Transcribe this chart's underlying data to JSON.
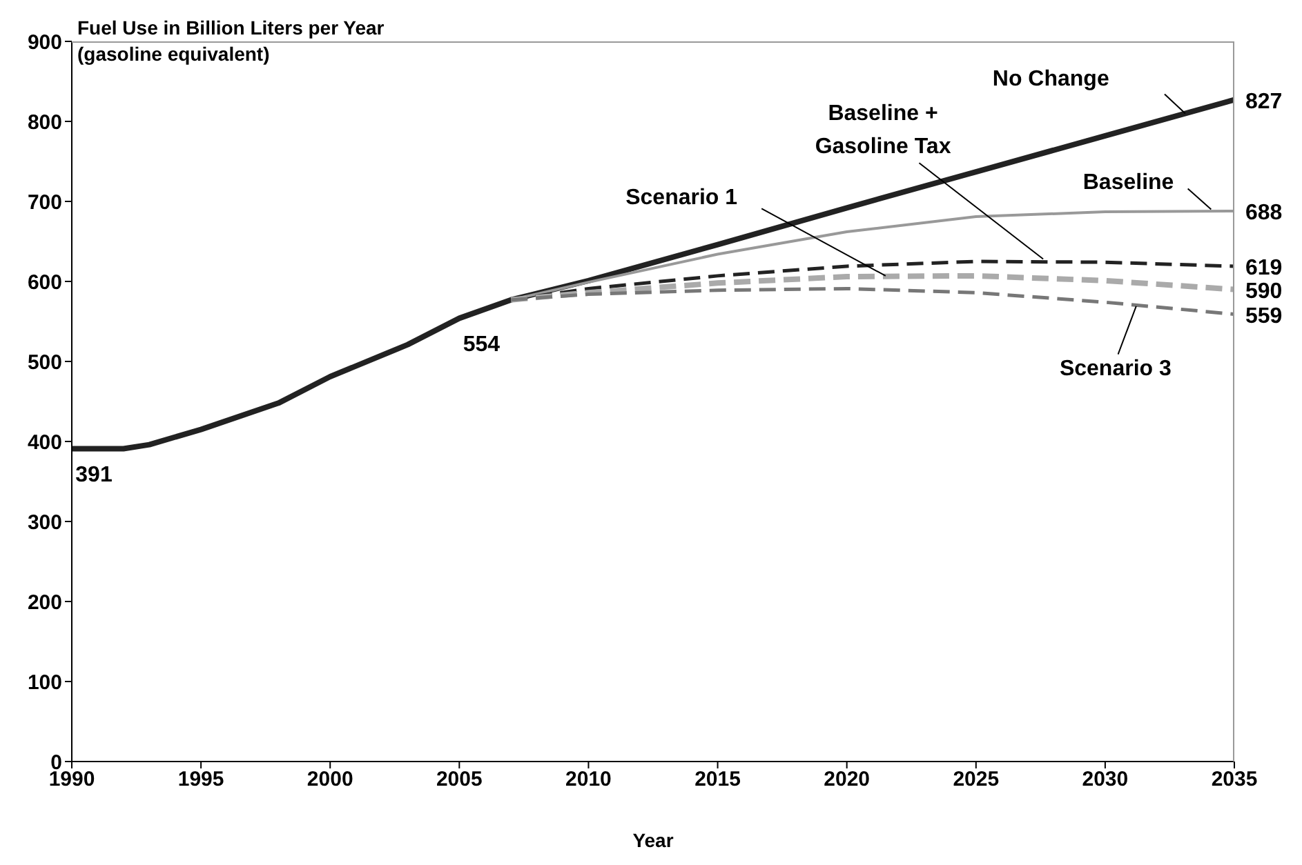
{
  "chart_data": {
    "type": "line",
    "ylabel": "Fuel Use in Billion Liters per Year (gasoline equivalent)",
    "xlabel": "Year",
    "xlim": [
      1990,
      2035
    ],
    "xticks": [
      1990,
      1995,
      2000,
      2005,
      2010,
      2015,
      2020,
      2025,
      2030,
      2035
    ],
    "ylim": [
      0,
      900
    ],
    "yticks": [
      0,
      100,
      200,
      300,
      400,
      500,
      600,
      700,
      800,
      900
    ],
    "grid": false,
    "legend": false,
    "marker": "none",
    "series": [
      {
        "name": "No Change",
        "color": "#222222",
        "line_style": "solid",
        "x": [
          1990,
          1992,
          1993,
          1995,
          1998,
          2000,
          2003,
          2005,
          2007,
          2010,
          2015,
          2020,
          2025,
          2030,
          2035
        ],
        "values": [
          391,
          391,
          396,
          415,
          448,
          481,
          521,
          554,
          577,
          601,
          646,
          692,
          737,
          782,
          827
        ],
        "value_labels": [
          "391",
          null,
          null,
          null,
          null,
          null,
          null,
          "554",
          null,
          null,
          null,
          null,
          null,
          null,
          "827"
        ]
      },
      {
        "name": "Baseline",
        "color": "#999999",
        "line_style": "solid",
        "x": [
          2007,
          2010,
          2015,
          2020,
          2025,
          2030,
          2035
        ],
        "values": [
          577,
          599,
          634,
          662,
          681,
          687,
          688
        ],
        "value_labels": [
          null,
          null,
          null,
          null,
          null,
          null,
          "688"
        ]
      },
      {
        "name": "Baseline + Gasoline Tax",
        "color": "#222222",
        "line_style": "dashed",
        "x": [
          2007,
          2010,
          2015,
          2020,
          2025,
          2030,
          2035
        ],
        "values": [
          577,
          591,
          607,
          619,
          625,
          624,
          619
        ],
        "value_labels": [
          null,
          null,
          null,
          null,
          null,
          null,
          "619"
        ]
      },
      {
        "name": "Scenario 1",
        "color": "#aaaaaa",
        "line_style": "dashed",
        "x": [
          2007,
          2010,
          2015,
          2020,
          2025,
          2030,
          2035
        ],
        "values": [
          577,
          586,
          598,
          606,
          607,
          601,
          590
        ],
        "value_labels": [
          null,
          null,
          null,
          null,
          null,
          null,
          "590"
        ]
      },
      {
        "name": "Scenario 3",
        "color": "#777777",
        "line_style": "dashed",
        "x": [
          2007,
          2010,
          2015,
          2020,
          2025,
          2030,
          2035
        ],
        "values": [
          577,
          584,
          589,
          591,
          586,
          574,
          559
        ],
        "value_labels": [
          null,
          null,
          null,
          null,
          null,
          null,
          "559"
        ]
      }
    ]
  }
}
